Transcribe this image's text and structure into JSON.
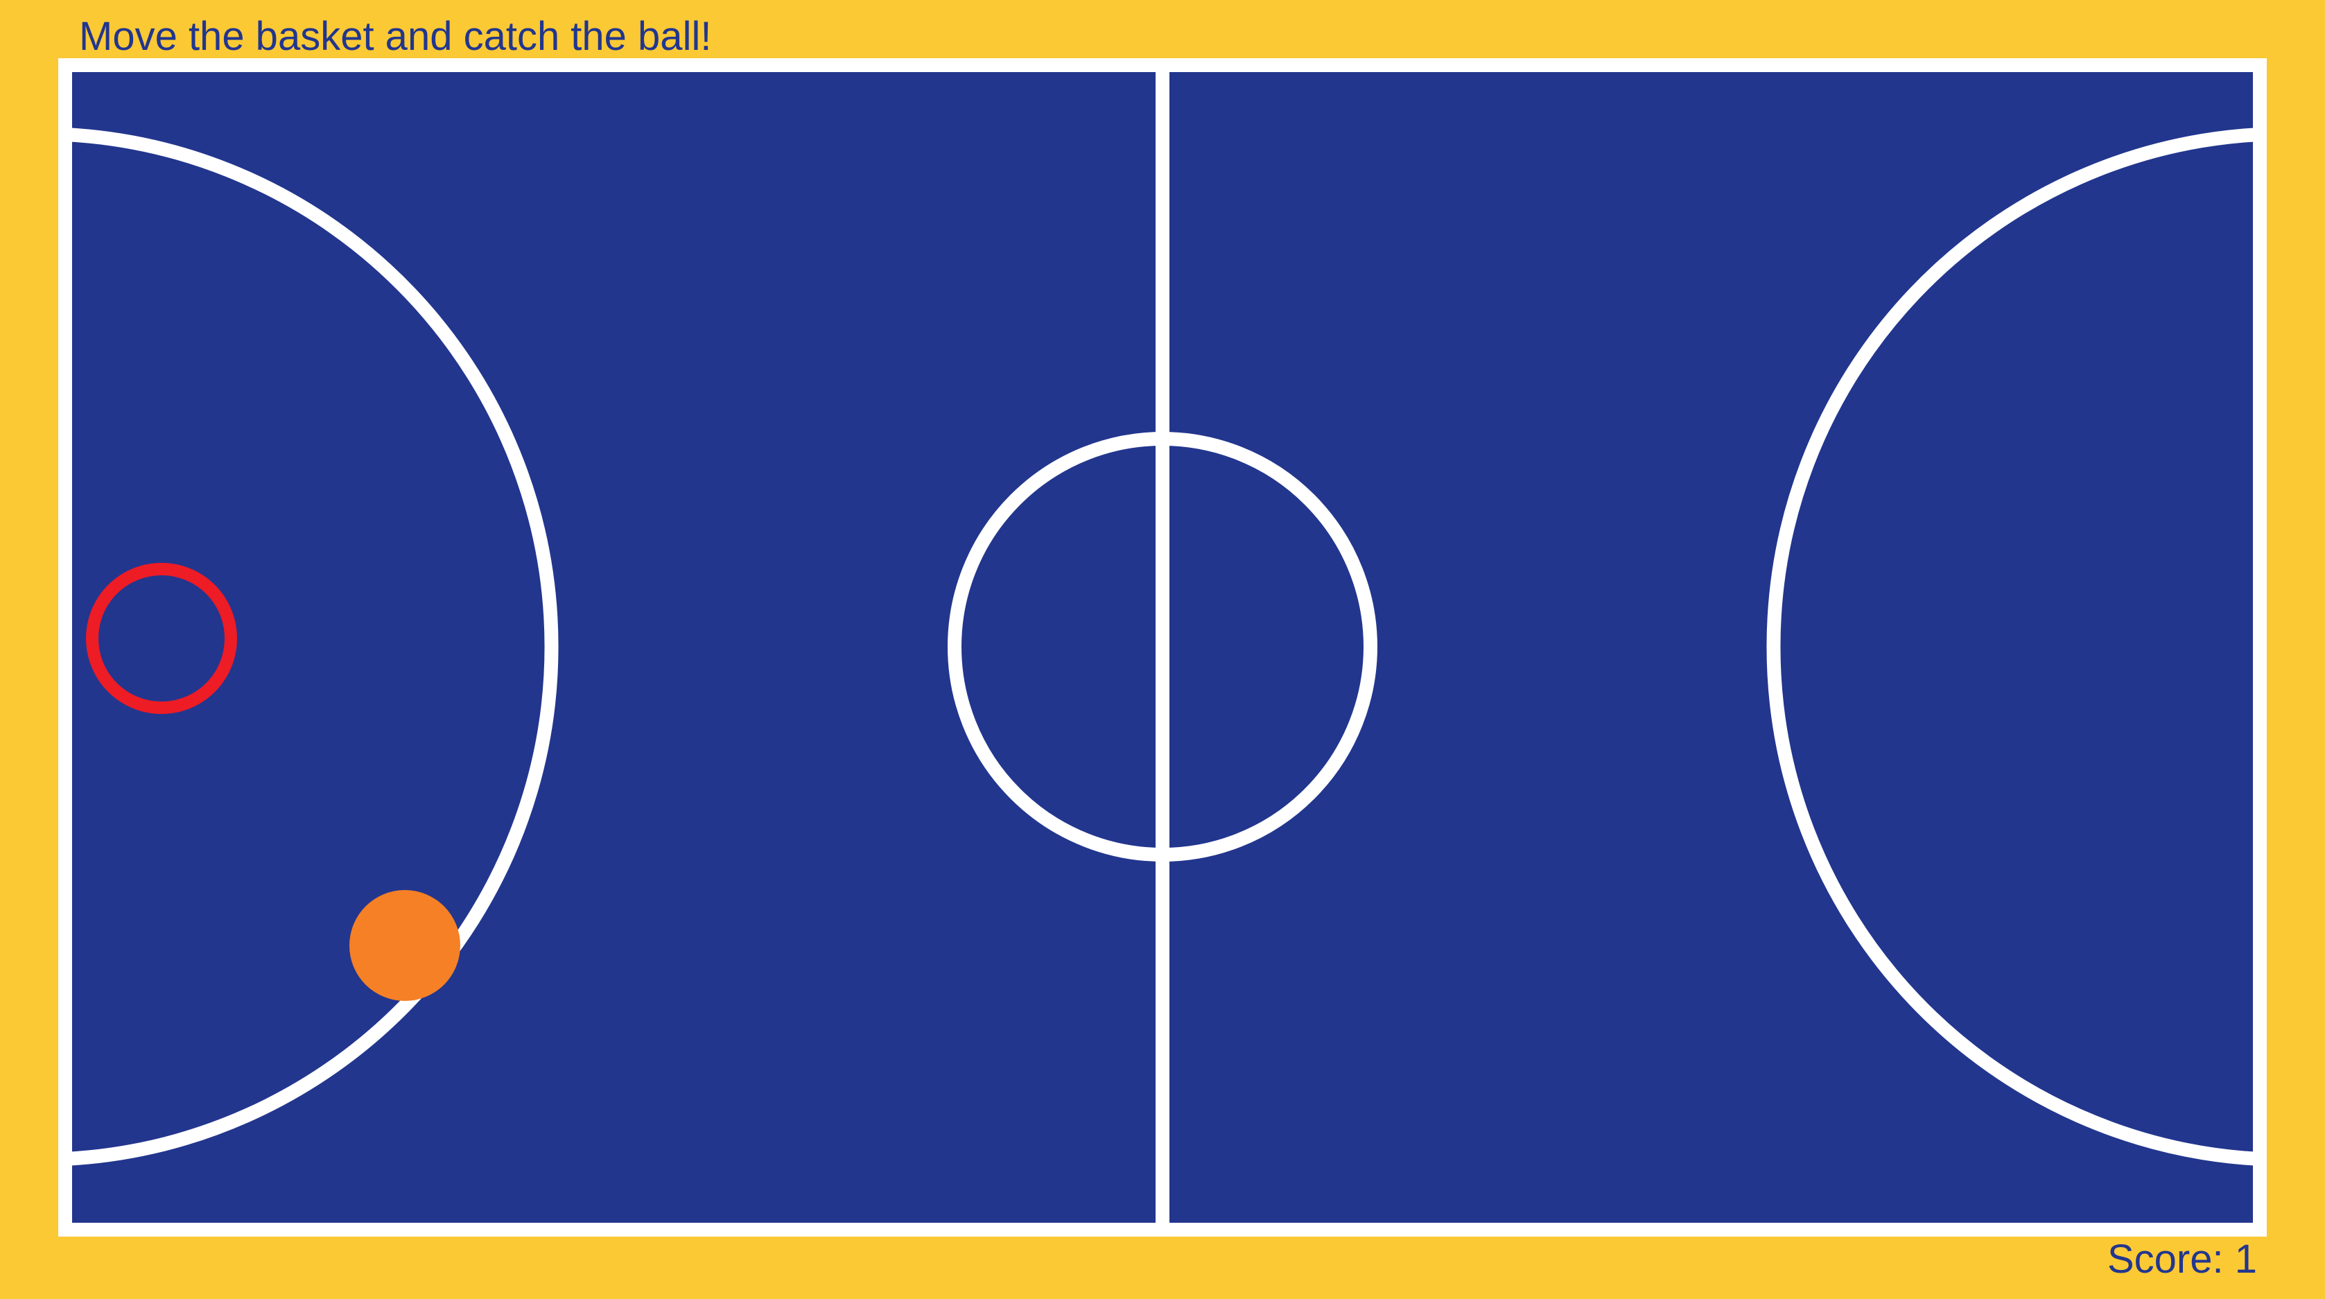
{
  "instruction": "Move the basket and catch the ball!",
  "score": {
    "label": "Score: ",
    "value": 1
  },
  "colors": {
    "background": "#FBC934",
    "court": "#22368E",
    "court_lines": "#FFFFFF",
    "basket": "#EE1C25",
    "ball": "#F58025",
    "text": "#22368E"
  }
}
